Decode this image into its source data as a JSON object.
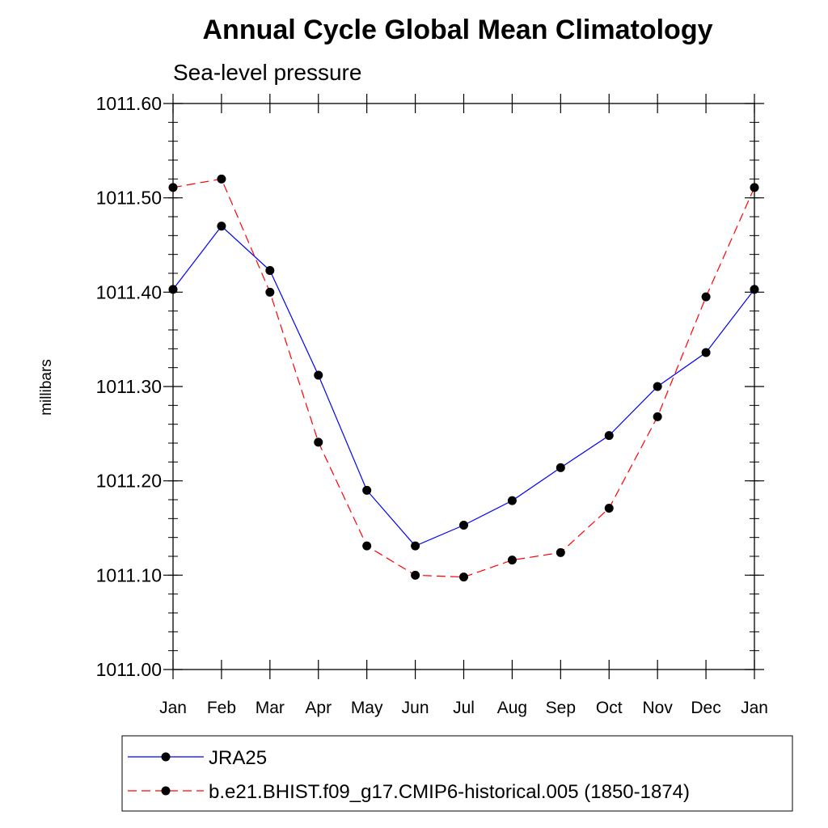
{
  "chart_data": {
    "type": "line",
    "title": "Annual Cycle Global Mean Climatology",
    "subtitle": "Sea-level pressure",
    "ylabel": "millibars",
    "xlabel": "",
    "categories": [
      "Jan",
      "Feb",
      "Mar",
      "Apr",
      "May",
      "Jun",
      "Jul",
      "Aug",
      "Sep",
      "Oct",
      "Nov",
      "Dec",
      "Jan"
    ],
    "ylim": [
      1011.0,
      1011.6
    ],
    "yticks": [
      "1011.00",
      "1011.10",
      "1011.20",
      "1011.30",
      "1011.40",
      "1011.50",
      "1011.60"
    ],
    "grid": false,
    "legend_placement": "bottom",
    "series": [
      {
        "name": "JRA25",
        "color": "#0000ff",
        "dash": "solid",
        "values": [
          1011.403,
          1011.47,
          1011.423,
          1011.312,
          1011.19,
          1011.131,
          1011.153,
          1011.179,
          1011.214,
          1011.248,
          1011.3,
          1011.336,
          1011.403
        ]
      },
      {
        "name": "b.e21.BHIST.f09_g17.CMIP6-historical.005 (1850-1874)",
        "color": "#ff0000",
        "dash": "dashed",
        "values": [
          1011.511,
          1011.52,
          1011.4,
          1011.241,
          1011.131,
          1011.1,
          1011.098,
          1011.116,
          1011.124,
          1011.171,
          1011.268,
          1011.395,
          1011.511
        ]
      }
    ]
  }
}
